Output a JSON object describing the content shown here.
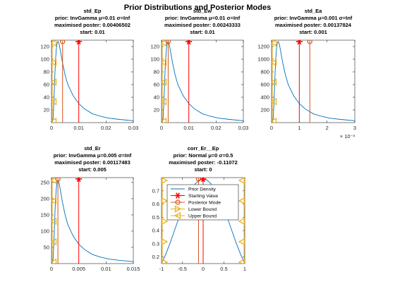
{
  "suptitle": "Prior Distributions and Posterior Modes",
  "colors": {
    "prior": "#0072BD",
    "start": "#FF0000",
    "mode": "#D95319",
    "bounds": "#EDB120"
  },
  "legend": {
    "entries": [
      "Prior Density",
      "Starting Value",
      "Posterior Mode",
      "Lower Bound",
      "Upper Bound"
    ],
    "placement": "inside-top-left"
  },
  "chart_data": [
    {
      "type": "line",
      "id": "std-ep",
      "title": [
        "std_Ep",
        "prior: InvGamma μ=0.01 σ=Inf",
        "maximised poster: 0.00406502",
        "start: 0.01"
      ],
      "xlim": [
        0,
        0.03
      ],
      "ylim": [
        0,
        130
      ],
      "xticks": [
        0,
        0.01,
        0.02,
        0.03
      ],
      "xtick_labels": [
        "0",
        "0.01",
        "0.02",
        "0.03"
      ],
      "yticks": [
        20,
        40,
        60,
        80,
        100,
        120
      ],
      "ytick_labels": [
        "20",
        "40",
        "60",
        "80",
        "100",
        "120"
      ],
      "exponent_label": "",
      "prior_density": {
        "x": [
          0.0003,
          0.0006,
          0.0009,
          0.0012,
          0.0015,
          0.0018,
          0.0021,
          0.0024,
          0.0028,
          0.0033,
          0.004,
          0.005,
          0.006,
          0.008,
          0.01,
          0.012,
          0.015,
          0.018,
          0.021,
          0.025,
          0.03
        ],
        "y": [
          0,
          8,
          35,
          70,
          100,
          118,
          126,
          128,
          124,
          112,
          95,
          75,
          60,
          42,
          30,
          22,
          14,
          10,
          7,
          5,
          3
        ]
      },
      "start": 0.01,
      "mode": 0.00406502,
      "lower_bound": 0,
      "upper_bound": null
    },
    {
      "type": "line",
      "id": "std-ew",
      "title": [
        "std_Ew",
        "prior: InvGamma μ=0.01 σ=Inf",
        "maximised poster: 0.00243333",
        "start: 0.01"
      ],
      "xlim": [
        0,
        0.03
      ],
      "ylim": [
        0,
        130
      ],
      "xticks": [
        0,
        0.01,
        0.02,
        0.03
      ],
      "xtick_labels": [
        "0",
        "0.01",
        "0.02",
        "0.03"
      ],
      "yticks": [
        20,
        40,
        60,
        80,
        100,
        120
      ],
      "ytick_labels": [
        "20",
        "40",
        "60",
        "80",
        "100",
        "120"
      ],
      "exponent_label": "",
      "prior_density": {
        "x": [
          0.0003,
          0.0006,
          0.0009,
          0.0012,
          0.0015,
          0.0018,
          0.0021,
          0.0024,
          0.0028,
          0.0033,
          0.004,
          0.005,
          0.006,
          0.008,
          0.01,
          0.012,
          0.015,
          0.018,
          0.021,
          0.025,
          0.03
        ],
        "y": [
          0,
          8,
          35,
          70,
          100,
          118,
          126,
          128,
          124,
          112,
          95,
          75,
          60,
          42,
          30,
          22,
          14,
          10,
          7,
          5,
          3
        ]
      },
      "start": 0.01,
      "mode": 0.00243333,
      "lower_bound": 0,
      "upper_bound": null
    },
    {
      "type": "line",
      "id": "std-ea",
      "title": [
        "std_Ea",
        "prior: InvGamma μ=0.001 σ=Inf",
        "maximised poster: 0.00137824",
        "start: 0.001"
      ],
      "xlim": [
        0,
        0.003
      ],
      "ylim": [
        0,
        1300
      ],
      "xticks": [
        0,
        0.001,
        0.002,
        0.003
      ],
      "xtick_labels": [
        "0",
        "1",
        "2",
        "3"
      ],
      "yticks": [
        200,
        400,
        600,
        800,
        1000,
        1200
      ],
      "ytick_labels": [
        "200",
        "400",
        "600",
        "800",
        "1000",
        "1200"
      ],
      "exponent_label": "× 10⁻³",
      "prior_density": {
        "x": [
          3e-05,
          6e-05,
          9e-05,
          0.00012,
          0.00015,
          0.00018,
          0.00021,
          0.00024,
          0.00028,
          0.00033,
          0.0004,
          0.0005,
          0.0006,
          0.0008,
          0.001,
          0.0012,
          0.0015,
          0.0018,
          0.0021,
          0.0025,
          0.003
        ],
        "y": [
          0,
          80,
          350,
          700,
          1000,
          1180,
          1260,
          1280,
          1240,
          1120,
          950,
          750,
          600,
          420,
          300,
          220,
          140,
          100,
          70,
          50,
          30
        ]
      },
      "start": 0.001,
      "mode": 0.00137824,
      "lower_bound": 0,
      "upper_bound": null
    },
    {
      "type": "line",
      "id": "std-er",
      "title": [
        "std_Er",
        "prior: InvGamma μ=0.005 σ=Inf",
        "maximised poster: 0.00117483",
        "start: 0.005"
      ],
      "xlim": [
        0,
        0.015
      ],
      "ylim": [
        0,
        265
      ],
      "xticks": [
        0,
        0.005,
        0.01,
        0.015
      ],
      "xtick_labels": [
        "0",
        "0.005",
        "0.01",
        "0.015"
      ],
      "yticks": [
        50,
        100,
        150,
        200,
        250
      ],
      "ytick_labels": [
        "50",
        "100",
        "150",
        "200",
        "250"
      ],
      "exponent_label": "",
      "prior_density": {
        "x": [
          0.00015,
          0.0003,
          0.00045,
          0.0006,
          0.00075,
          0.0009,
          0.00105,
          0.0012,
          0.0014,
          0.00165,
          0.002,
          0.0025,
          0.003,
          0.004,
          0.005,
          0.006,
          0.0075,
          0.009,
          0.0105,
          0.0125,
          0.015
        ],
        "y": [
          0,
          16,
          70,
          140,
          200,
          236,
          252,
          256,
          248,
          224,
          190,
          150,
          120,
          84,
          60,
          44,
          28,
          20,
          14,
          10,
          6
        ]
      },
      "start": 0.005,
      "mode": 0.00117483,
      "lower_bound": 0,
      "upper_bound": null
    },
    {
      "type": "line",
      "id": "corr-er-ep",
      "title": [
        "corr_Er__Ep",
        "prior: Normal μ=0 σ=0.5",
        "maximised poster: -0.11072",
        "start: 0"
      ],
      "xlim": [
        -1,
        1
      ],
      "ylim": [
        0.15,
        0.8
      ],
      "xticks": [
        -1,
        -0.5,
        0,
        0.5,
        1
      ],
      "xtick_labels": [
        "-1",
        "-0.5",
        "0",
        "0.5",
        "1"
      ],
      "yticks": [
        0.2,
        0.3,
        0.4,
        0.5,
        0.6,
        0.7
      ],
      "ytick_labels": [
        "0.2",
        "0.3",
        "0.4",
        "0.5",
        "0.6",
        "0.7"
      ],
      "exponent_label": "",
      "prior_density": {
        "x": [
          -1,
          -0.9,
          -0.8,
          -0.7,
          -0.6,
          -0.5,
          -0.4,
          -0.3,
          -0.2,
          -0.1,
          0,
          0.1,
          0.2,
          0.3,
          0.4,
          0.5,
          0.6,
          0.7,
          0.8,
          0.9,
          1
        ],
        "y": [
          0.15,
          0.22,
          0.3,
          0.39,
          0.48,
          0.56,
          0.64,
          0.7,
          0.75,
          0.78,
          0.79,
          0.78,
          0.75,
          0.7,
          0.64,
          0.56,
          0.48,
          0.39,
          0.3,
          0.22,
          0.15
        ]
      },
      "start": 0,
      "mode": -0.11072,
      "lower_bound": -1,
      "upper_bound": 1
    }
  ]
}
